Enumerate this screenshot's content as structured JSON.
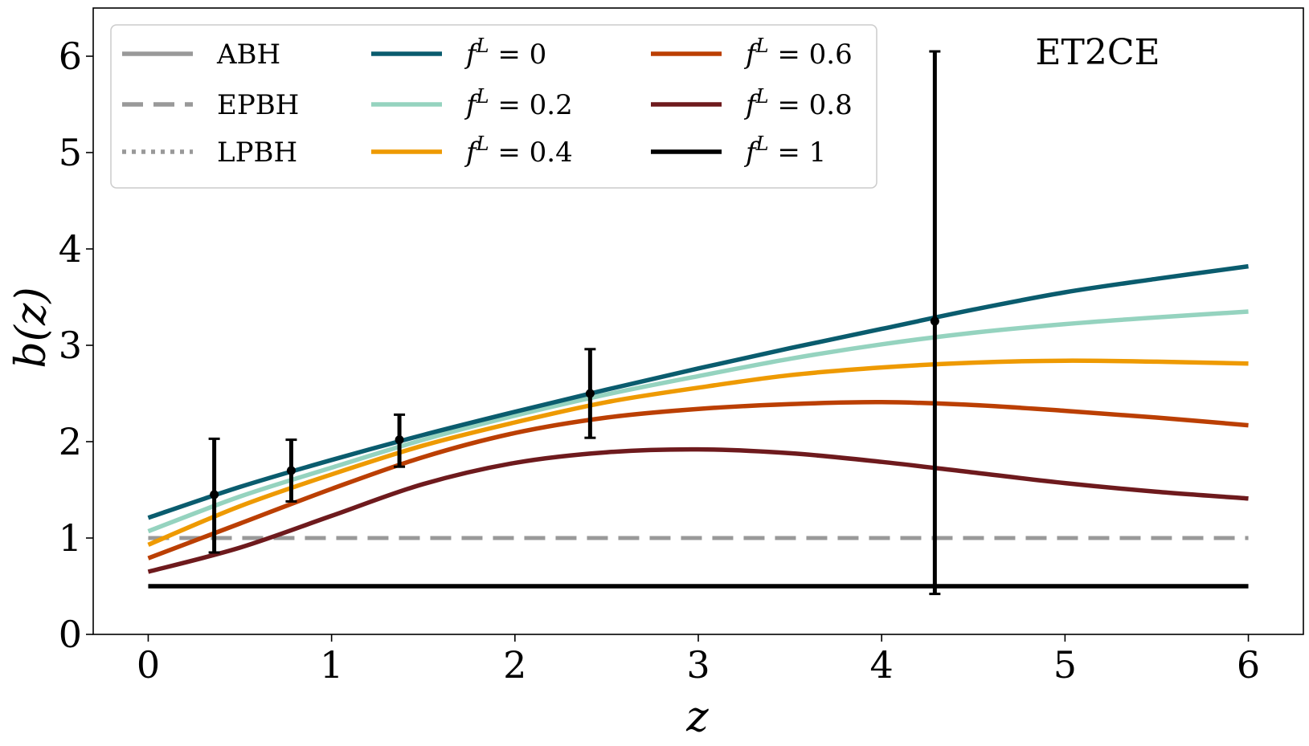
{
  "chart_data": {
    "type": "line",
    "title": "",
    "annotation": "ET2CE",
    "xlabel": "z",
    "ylabel": "b(z)",
    "xlim": [
      -0.3,
      6.3
    ],
    "ylim": [
      0,
      6.5
    ],
    "xticks": [
      "0",
      "1",
      "2",
      "3",
      "4",
      "5",
      "6"
    ],
    "yticks": [
      "0",
      "1",
      "2",
      "3",
      "4",
      "5",
      "6"
    ],
    "grid": false,
    "legend_placement": "top-left",
    "legend": [
      {
        "label": "ABH",
        "style": "solid",
        "color": "#999999"
      },
      {
        "label": "EPBH",
        "style": "dashed",
        "color": "#999999"
      },
      {
        "label": "LPBH",
        "style": "dotted",
        "color": "#999999"
      },
      {
        "label": "f^L = 0",
        "style": "solid",
        "color": "#0a5c6e"
      },
      {
        "label": "f^L = 0.2",
        "style": "solid",
        "color": "#95d3bf"
      },
      {
        "label": "f^L = 0.4",
        "style": "solid",
        "color": "#ee9a02"
      },
      {
        "label": "f^L = 0.6",
        "style": "solid",
        "color": "#bb3f03"
      },
      {
        "label": "f^L = 0.8",
        "style": "solid",
        "color": "#6e1a1d"
      },
      {
        "label": "f^L = 1",
        "style": "solid",
        "color": "#000000"
      }
    ],
    "x": [
      0,
      0.5,
      1,
      1.5,
      2,
      2.5,
      3,
      3.5,
      4,
      4.5,
      5,
      5.5,
      6
    ],
    "series": [
      {
        "name": "f^L = 0",
        "color": "#0a5c6e",
        "values": [
          1.21,
          1.53,
          1.81,
          2.07,
          2.31,
          2.54,
          2.76,
          2.97,
          3.17,
          3.37,
          3.55,
          3.69,
          3.82
        ]
      },
      {
        "name": "f^L = 0.2",
        "color": "#95d3bf",
        "values": [
          1.07,
          1.43,
          1.73,
          2.02,
          2.27,
          2.49,
          2.68,
          2.86,
          3.01,
          3.13,
          3.22,
          3.29,
          3.35
        ]
      },
      {
        "name": "f^L = 0.4",
        "color": "#ee9a02",
        "values": [
          0.93,
          1.33,
          1.66,
          1.96,
          2.2,
          2.41,
          2.56,
          2.69,
          2.77,
          2.82,
          2.84,
          2.83,
          2.81
        ]
      },
      {
        "name": "f^L = 0.6",
        "color": "#bb3f03",
        "values": [
          0.79,
          1.15,
          1.51,
          1.84,
          2.09,
          2.25,
          2.34,
          2.39,
          2.41,
          2.38,
          2.32,
          2.25,
          2.17
        ]
      },
      {
        "name": "f^L = 0.8",
        "color": "#6e1a1d",
        "values": [
          0.65,
          0.9,
          1.23,
          1.56,
          1.78,
          1.89,
          1.92,
          1.88,
          1.79,
          1.68,
          1.57,
          1.48,
          1.41
        ]
      },
      {
        "name": "f^L = 1",
        "color": "#000000",
        "values": [
          0.5,
          0.5,
          0.5,
          0.5,
          0.5,
          0.5,
          0.5,
          0.5,
          0.5,
          0.5,
          0.5,
          0.5,
          0.5
        ]
      },
      {
        "name": "EPBH",
        "color": "#999999",
        "dash": "dashed",
        "values": [
          1.0,
          1.0,
          1.0,
          1.0,
          1.0,
          1.0,
          1.0,
          1.0,
          1.0,
          1.0,
          1.0,
          1.0,
          1.0
        ]
      }
    ],
    "errorbars": [
      {
        "x": 0.36,
        "y": 1.45,
        "ylow": 0.85,
        "yhigh": 2.03
      },
      {
        "x": 0.78,
        "y": 1.7,
        "ylow": 1.38,
        "yhigh": 2.02
      },
      {
        "x": 1.37,
        "y": 2.02,
        "ylow": 1.74,
        "yhigh": 2.28
      },
      {
        "x": 2.41,
        "y": 2.5,
        "ylow": 2.04,
        "yhigh": 2.96
      },
      {
        "x": 4.29,
        "y": 3.25,
        "ylow": 0.42,
        "yhigh": 6.05
      }
    ]
  }
}
